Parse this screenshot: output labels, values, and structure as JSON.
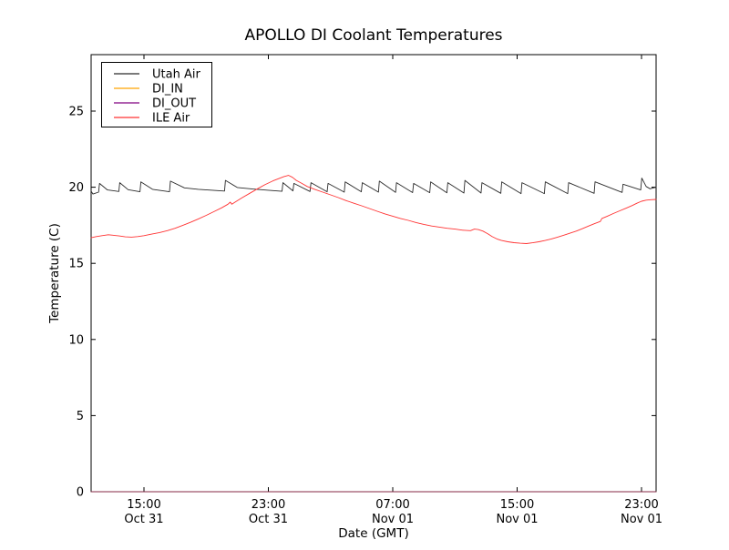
{
  "chart_data": {
    "type": "line",
    "title": "APOLLO DI Coolant Temperatures",
    "xlabel": "Date (GMT)",
    "ylabel": "Temperature (C)",
    "x_unit_hours_origin": "15:00 Oct 31 GMT",
    "xlim": [
      -3.4,
      32.94
    ],
    "ylim": [
      0,
      28.7
    ],
    "grid": false,
    "legend_position": "upper-left",
    "x_ticks": [
      {
        "h": 0,
        "time": "15:00",
        "date": "Oct 31"
      },
      {
        "h": 8,
        "time": "23:00",
        "date": "Oct 31"
      },
      {
        "h": 16,
        "time": "07:00",
        "date": "Nov 01"
      },
      {
        "h": 24,
        "time": "15:00",
        "date": "Nov 01"
      },
      {
        "h": 32,
        "time": "23:00",
        "date": "Nov 01"
      }
    ],
    "y_ticks": [
      0,
      5,
      10,
      15,
      20,
      25
    ],
    "series": [
      {
        "name": "Utah Air",
        "color": "#2b2b2b",
        "width": 0.9,
        "opacity": 1,
        "points": [
          [
            -3.4,
            19.75
          ],
          [
            -3.28,
            19.55
          ],
          [
            -2.92,
            19.68
          ],
          [
            -2.86,
            20.25
          ],
          [
            -2.35,
            19.82
          ],
          [
            -1.62,
            19.72
          ],
          [
            -1.56,
            20.3
          ],
          [
            -1.02,
            19.84
          ],
          [
            -0.26,
            19.7
          ],
          [
            -0.2,
            20.35
          ],
          [
            0.55,
            19.86
          ],
          [
            1.64,
            19.7
          ],
          [
            1.7,
            20.4
          ],
          [
            2.6,
            19.96
          ],
          [
            3.5,
            19.86
          ],
          [
            4.4,
            19.8
          ],
          [
            5.18,
            19.75
          ],
          [
            5.24,
            20.45
          ],
          [
            6.0,
            19.98
          ],
          [
            7.0,
            19.88
          ],
          [
            8.0,
            19.8
          ],
          [
            8.88,
            19.73
          ],
          [
            8.94,
            20.3
          ],
          [
            9.58,
            19.76
          ],
          [
            9.64,
            20.25
          ],
          [
            10.68,
            19.72
          ],
          [
            10.74,
            20.3
          ],
          [
            11.78,
            19.7
          ],
          [
            11.84,
            20.25
          ],
          [
            12.88,
            19.68
          ],
          [
            12.94,
            20.35
          ],
          [
            13.98,
            19.7
          ],
          [
            14.04,
            20.3
          ],
          [
            15.08,
            19.68
          ],
          [
            15.14,
            20.4
          ],
          [
            16.18,
            19.66
          ],
          [
            16.24,
            20.3
          ],
          [
            17.28,
            19.65
          ],
          [
            17.34,
            20.25
          ],
          [
            18.38,
            19.64
          ],
          [
            18.44,
            20.35
          ],
          [
            19.48,
            19.63
          ],
          [
            19.54,
            20.3
          ],
          [
            20.58,
            19.62
          ],
          [
            20.64,
            20.45
          ],
          [
            21.68,
            19.62
          ],
          [
            21.74,
            20.3
          ],
          [
            22.95,
            19.6
          ],
          [
            23.01,
            20.35
          ],
          [
            24.25,
            19.58
          ],
          [
            24.31,
            20.3
          ],
          [
            25.75,
            19.58
          ],
          [
            25.81,
            20.35
          ],
          [
            27.25,
            19.58
          ],
          [
            27.31,
            20.3
          ],
          [
            28.95,
            19.6
          ],
          [
            29.01,
            20.35
          ],
          [
            30.75,
            19.66
          ],
          [
            30.81,
            20.2
          ],
          [
            31.95,
            19.82
          ],
          [
            32.02,
            20.6
          ],
          [
            32.3,
            20.05
          ],
          [
            32.55,
            19.9
          ],
          [
            32.94,
            20.0
          ]
        ]
      },
      {
        "name": "DI_IN",
        "color": "#ffa500",
        "width": 1,
        "opacity": 0.55,
        "points": [
          [
            -3.4,
            0
          ],
          [
            32.94,
            0
          ]
        ]
      },
      {
        "name": "DI_OUT",
        "color": "#800080",
        "width": 1,
        "opacity": 0.55,
        "points": [
          [
            -3.4,
            0
          ],
          [
            32.94,
            0
          ]
        ]
      },
      {
        "name": "ILE Air",
        "color": "#ff3333",
        "width": 0.9,
        "opacity": 1,
        "points": [
          [
            -3.4,
            16.68
          ],
          [
            -3.1,
            16.75
          ],
          [
            -2.7,
            16.82
          ],
          [
            -2.3,
            16.88
          ],
          [
            -2.0,
            16.85
          ],
          [
            -1.6,
            16.8
          ],
          [
            -1.2,
            16.74
          ],
          [
            -0.8,
            16.72
          ],
          [
            -0.4,
            16.76
          ],
          [
            0.0,
            16.82
          ],
          [
            0.5,
            16.92
          ],
          [
            1.0,
            17.02
          ],
          [
            1.5,
            17.15
          ],
          [
            2.0,
            17.3
          ],
          [
            2.5,
            17.5
          ],
          [
            3.0,
            17.7
          ],
          [
            3.5,
            17.92
          ],
          [
            4.0,
            18.15
          ],
          [
            4.5,
            18.4
          ],
          [
            5.0,
            18.65
          ],
          [
            5.4,
            18.88
          ],
          [
            5.55,
            19.02
          ],
          [
            5.65,
            18.88
          ],
          [
            5.9,
            19.05
          ],
          [
            6.3,
            19.3
          ],
          [
            6.8,
            19.6
          ],
          [
            7.3,
            19.9
          ],
          [
            7.8,
            20.18
          ],
          [
            8.3,
            20.42
          ],
          [
            8.7,
            20.58
          ],
          [
            9.0,
            20.7
          ],
          [
            9.3,
            20.78
          ],
          [
            9.55,
            20.65
          ],
          [
            9.8,
            20.45
          ],
          [
            10.1,
            20.28
          ],
          [
            10.5,
            20.05
          ],
          [
            11.0,
            19.85
          ],
          [
            11.5,
            19.68
          ],
          [
            12.0,
            19.5
          ],
          [
            12.5,
            19.32
          ],
          [
            13.0,
            19.12
          ],
          [
            13.5,
            18.95
          ],
          [
            14.0,
            18.78
          ],
          [
            14.5,
            18.6
          ],
          [
            15.0,
            18.42
          ],
          [
            15.5,
            18.25
          ],
          [
            16.0,
            18.1
          ],
          [
            16.5,
            17.95
          ],
          [
            17.0,
            17.82
          ],
          [
            17.5,
            17.68
          ],
          [
            18.0,
            17.56
          ],
          [
            18.5,
            17.45
          ],
          [
            19.0,
            17.38
          ],
          [
            19.5,
            17.3
          ],
          [
            20.0,
            17.25
          ],
          [
            20.5,
            17.18
          ],
          [
            21.0,
            17.15
          ],
          [
            21.25,
            17.25
          ],
          [
            21.5,
            17.22
          ],
          [
            21.8,
            17.12
          ],
          [
            22.1,
            16.95
          ],
          [
            22.4,
            16.75
          ],
          [
            22.7,
            16.6
          ],
          [
            23.0,
            16.5
          ],
          [
            23.4,
            16.42
          ],
          [
            23.8,
            16.36
          ],
          [
            24.2,
            16.32
          ],
          [
            24.6,
            16.3
          ],
          [
            25.0,
            16.35
          ],
          [
            25.4,
            16.42
          ],
          [
            25.8,
            16.5
          ],
          [
            26.2,
            16.6
          ],
          [
            26.6,
            16.72
          ],
          [
            27.0,
            16.85
          ],
          [
            27.4,
            16.98
          ],
          [
            27.8,
            17.12
          ],
          [
            28.2,
            17.28
          ],
          [
            28.6,
            17.45
          ],
          [
            29.0,
            17.62
          ],
          [
            29.35,
            17.75
          ],
          [
            29.45,
            17.95
          ],
          [
            29.8,
            18.1
          ],
          [
            30.2,
            18.28
          ],
          [
            30.6,
            18.45
          ],
          [
            31.0,
            18.62
          ],
          [
            31.4,
            18.8
          ],
          [
            31.7,
            18.95
          ],
          [
            32.0,
            19.08
          ],
          [
            32.3,
            19.15
          ],
          [
            32.6,
            19.18
          ],
          [
            32.94,
            19.2
          ]
        ]
      }
    ]
  }
}
